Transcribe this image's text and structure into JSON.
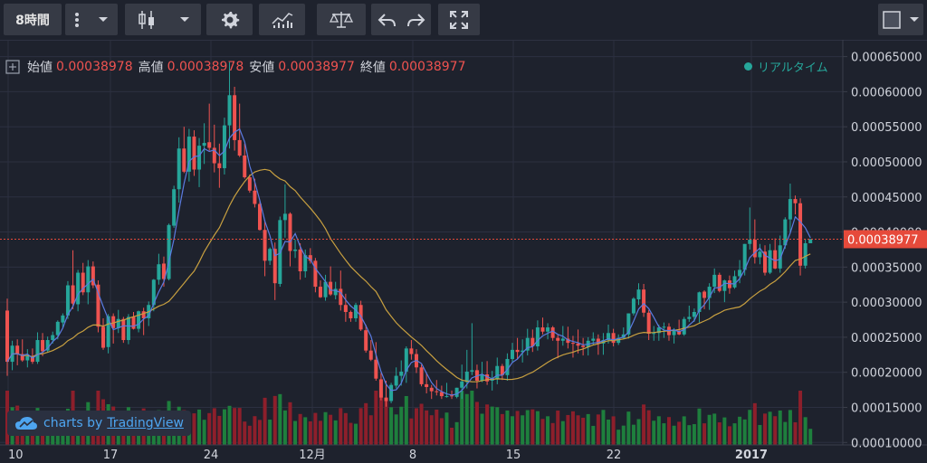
{
  "toolbar": {
    "interval": "8時間",
    "icons": [
      "more-vert-icon",
      "chevron-down-icon",
      "candlestick-icon",
      "chevron-down-icon",
      "gear-icon",
      "indicators-icon",
      "compare-scale-icon",
      "undo-icon",
      "redo-icon",
      "fullscreen-icon",
      "color-square-icon",
      "chevron-down-icon"
    ]
  },
  "legend": {
    "open_label": "始値",
    "open_value": "0.00038978",
    "high_label": "高値",
    "high_value": "0.00038978",
    "low_label": "安値",
    "low_value": "0.00038977",
    "close_label": "終値",
    "close_value": "0.00038977"
  },
  "realtime_label": "リアルタイム",
  "watermark": {
    "prefix": "charts by",
    "brand": "TradingView"
  },
  "colors": {
    "up": "#26a69a",
    "down": "#ef5350",
    "up_vol": "#1e7f3d",
    "down_vol": "#8d1f2b",
    "sma_fast": "#5b7be0",
    "sma_slow": "#c8a040",
    "bg": "#1e222d",
    "grid": "#2c3040",
    "badge": "#e64a3b"
  },
  "chart_data": {
    "type": "candlestick",
    "price_axis": {
      "ticks": [
        "0.00065000",
        "0.00060000",
        "0.00055000",
        "0.00050000",
        "0.00045000",
        "0.00040000",
        "0.00035000",
        "0.00030000",
        "0.00025000",
        "0.00020000",
        "0.00015000",
        "0.00010000"
      ],
      "ylim": [
        9.65e-05,
        0.000674
      ],
      "last_price": "0.00038977"
    },
    "time_axis": {
      "ticks": [
        "10",
        "17",
        "24",
        "12月",
        "8",
        "15",
        "22",
        "2017"
      ]
    },
    "series": [
      {
        "name": "price",
        "values": [
          [
            0.000288,
            0.000305,
            0.000195,
            0.000215
          ],
          [
            0.000215,
            0.000245,
            0.000203,
            0.000238
          ],
          [
            0.000238,
            0.000247,
            0.00021,
            0.000226
          ],
          [
            0.000226,
            0.000247,
            0.000215,
            0.000217
          ],
          [
            0.000217,
            0.000233,
            0.000207,
            0.000223
          ],
          [
            0.000223,
            0.000234,
            0.000212,
            0.000215
          ],
          [
            0.000215,
            0.000257,
            0.000212,
            0.000246
          ],
          [
            0.000246,
            0.000256,
            0.000223,
            0.00023
          ],
          [
            0.000231,
            0.000251,
            0.000228,
            0.000246
          ],
          [
            0.000246,
            0.000258,
            0.000241,
            0.000253
          ],
          [
            0.000253,
            0.000274,
            0.000247,
            0.000272
          ],
          [
            0.000271,
            0.000284,
            0.000264,
            0.000281
          ],
          [
            0.000281,
            0.00033,
            0.000276,
            0.000324
          ],
          [
            0.000324,
            0.000374,
            0.00029,
            0.000298
          ],
          [
            0.000297,
            0.000346,
            0.000287,
            0.000342
          ],
          [
            0.000342,
            0.000356,
            0.00031,
            0.000314
          ],
          [
            0.000314,
            0.00036,
            0.000297,
            0.000351
          ],
          [
            0.000351,
            0.000358,
            0.00032,
            0.000324
          ],
          [
            0.000325,
            0.000331,
            0.000257,
            0.000265
          ],
          [
            0.000265,
            0.000277,
            0.000232,
            0.000235
          ],
          [
            0.000236,
            0.000283,
            0.000227,
            0.00028
          ],
          [
            0.00028,
            0.000284,
            0.000241,
            0.000263
          ],
          [
            0.000263,
            0.000289,
            0.000256,
            0.000276
          ],
          [
            0.000276,
            0.000279,
            0.000242,
            0.000246
          ],
          [
            0.000246,
            0.000283,
            0.00024,
            0.000279
          ],
          [
            0.000279,
            0.000286,
            0.000261,
            0.000262
          ],
          [
            0.000262,
            0.000288,
            0.000257,
            0.000287
          ],
          [
            0.000287,
            0.000292,
            0.000253,
            0.000277
          ],
          [
            0.000277,
            0.000301,
            0.000266,
            0.000296
          ],
          [
            0.000296,
            0.000333,
            0.000287,
            0.000332
          ],
          [
            0.000332,
            0.000369,
            0.000325,
            0.000354
          ],
          [
            0.000355,
            0.000365,
            0.000322,
            0.000333
          ],
          [
            0.000333,
            0.000412,
            0.000331,
            0.00041
          ],
          [
            0.000409,
            0.000466,
            0.000406,
            0.000461
          ],
          [
            0.000461,
            0.000535,
            0.000442,
            0.000519
          ],
          [
            0.000519,
            0.00055,
            0.000484,
            0.000486
          ],
          [
            0.000486,
            0.000547,
            0.000472,
            0.000536
          ],
          [
            0.000536,
            0.000545,
            0.00048,
            0.000489
          ],
          [
            0.000489,
            0.000534,
            0.000464,
            0.000523
          ],
          [
            0.000523,
            0.000555,
            0.000497,
            0.000527
          ],
          [
            0.000528,
            0.000583,
            0.000516,
            0.00052
          ],
          [
            0.00052,
            0.000553,
            0.000485,
            0.000498
          ],
          [
            0.000498,
            0.000526,
            0.000463,
            0.000491
          ],
          [
            0.000491,
            0.000563,
            0.000482,
            0.000552
          ],
          [
            0.000552,
            0.000642,
            0.000519,
            0.000595
          ],
          [
            0.000595,
            0.000607,
            0.000516,
            0.000531
          ],
          [
            0.000531,
            0.000583,
            0.000507,
            0.000509
          ],
          [
            0.000509,
            0.000526,
            0.000476,
            0.000478
          ],
          [
            0.000478,
            0.000482,
            0.000456,
            0.000459
          ],
          [
            0.000459,
            0.000476,
            0.000435,
            0.00044
          ],
          [
            0.00044,
            0.000446,
            0.000402,
            0.000403
          ],
          [
            0.000403,
            0.000417,
            0.000337,
            0.000359
          ],
          [
            0.000359,
            0.000378,
            0.000353,
            0.000376
          ],
          [
            0.000376,
            0.000385,
            0.000303,
            0.000327
          ],
          [
            0.000326,
            0.000422,
            0.000322,
            0.000417
          ],
          [
            0.000417,
            0.000468,
            0.000392,
            0.000426
          ],
          [
            0.000426,
            0.000428,
            0.000351,
            0.000373
          ],
          [
            0.000373,
            0.000389,
            0.000363,
            0.000375
          ],
          [
            0.000375,
            0.000384,
            0.000332,
            0.000344
          ],
          [
            0.000344,
            0.000375,
            0.000335,
            0.000367
          ],
          [
            0.000367,
            0.000377,
            0.000355,
            0.000359
          ],
          [
            0.000359,
            0.000363,
            0.000314,
            0.000322
          ],
          [
            0.000322,
            0.000331,
            0.000306,
            0.000307
          ],
          [
            0.000307,
            0.000339,
            0.000302,
            0.000329
          ],
          [
            0.000329,
            0.000351,
            0.000309,
            0.000311
          ],
          [
            0.00031,
            0.000329,
            0.000304,
            0.000319
          ],
          [
            0.000319,
            0.000345,
            0.000288,
            0.000296
          ],
          [
            0.000296,
            0.000312,
            0.000272,
            0.000286
          ],
          [
            0.000286,
            0.000288,
            0.000272,
            0.000277
          ],
          [
            0.000277,
            0.000299,
            0.000272,
            0.000296
          ],
          [
            0.000296,
            0.000302,
            0.000259,
            0.000261
          ],
          [
            0.00026,
            0.000268,
            0.000228,
            0.000231
          ],
          [
            0.000231,
            0.000246,
            0.000216,
            0.000218
          ],
          [
            0.000218,
            0.000243,
            0.000188,
            0.000191
          ],
          [
            0.00019,
            0.000199,
            0.00016,
            0.000164
          ],
          [
            0.000164,
            0.000188,
            0.000151,
            0.000159
          ],
          [
            0.000159,
            0.000185,
            0.000156,
            0.000182
          ],
          [
            0.000181,
            0.000207,
            0.000177,
            0.000195
          ],
          [
            0.000195,
            0.000217,
            0.000181,
            0.000201
          ],
          [
            0.000201,
            0.000237,
            0.000185,
            0.000234
          ],
          [
            0.000234,
            0.000246,
            0.000218,
            0.000226
          ],
          [
            0.000226,
            0.000233,
            0.000199,
            0.000207
          ],
          [
            0.000207,
            0.000211,
            0.00018,
            0.000183
          ],
          [
            0.000183,
            0.0002,
            0.00017,
            0.000179
          ],
          [
            0.000178,
            0.000182,
            0.000162,
            0.000173
          ],
          [
            0.000173,
            0.000189,
            0.000167,
            0.000172
          ],
          [
            0.000172,
            0.000181,
            0.000162,
            0.000166
          ],
          [
            0.000166,
            0.000185,
            0.000164,
            0.000166
          ],
          [
            0.000167,
            0.000174,
            0.000162,
            0.000166
          ],
          [
            0.000165,
            0.000178,
            0.000163,
            0.000178
          ],
          [
            0.000178,
            0.000211,
            0.000162,
            0.000187
          ],
          [
            0.000186,
            0.000232,
            0.000177,
            0.000201
          ],
          [
            0.000201,
            0.00027,
            0.000196,
            0.000203
          ],
          [
            0.000203,
            0.000211,
            0.000177,
            0.000188
          ],
          [
            0.000188,
            0.000215,
            0.000186,
            0.000197
          ],
          [
            0.000197,
            0.000216,
            0.000182,
            0.000187
          ],
          [
            0.000188,
            0.000202,
            0.000174,
            0.000191
          ],
          [
            0.000191,
            0.000221,
            0.000183,
            0.000209
          ],
          [
            0.000209,
            0.000212,
            0.000189,
            0.000196
          ],
          [
            0.000196,
            0.000227,
            0.000188,
            0.000219
          ],
          [
            0.000219,
            0.000242,
            0.000214,
            0.000232
          ],
          [
            0.000232,
            0.000249,
            0.000219,
            0.000229
          ],
          [
            0.000229,
            0.000247,
            0.000214,
            0.000231
          ],
          [
            0.000231,
            0.000262,
            0.000224,
            0.000249
          ],
          [
            0.000249,
            0.000261,
            0.000229,
            0.000237
          ],
          [
            0.000237,
            0.000274,
            0.000231,
            0.000264
          ],
          [
            0.000264,
            0.000278,
            0.000254,
            0.000258
          ],
          [
            0.000258,
            0.00027,
            0.000247,
            0.000264
          ],
          [
            0.000264,
            0.000266,
            0.000245,
            0.000249
          ],
          [
            0.000249,
            0.000254,
            0.00022,
            0.000245
          ],
          [
            0.000245,
            0.000266,
            0.000238,
            0.000248
          ],
          [
            0.000248,
            0.000265,
            0.000234,
            0.000242
          ],
          [
            0.000242,
            0.000252,
            0.000221,
            0.000241
          ],
          [
            0.000241,
            0.000261,
            0.000227,
            0.000238
          ],
          [
            0.000238,
            0.000249,
            0.000224,
            0.000236
          ],
          [
            0.000236,
            0.00025,
            0.000224,
            0.000245
          ],
          [
            0.000245,
            0.000257,
            0.000239,
            0.000248
          ],
          [
            0.000248,
            0.000254,
            0.000225,
            0.000241
          ],
          [
            0.000241,
            0.000256,
            0.000225,
            0.000246
          ],
          [
            0.000246,
            0.000268,
            0.000241,
            0.000256
          ],
          [
            0.000256,
            0.000262,
            0.000237,
            0.000242
          ],
          [
            0.000242,
            0.000254,
            0.000239,
            0.000249
          ],
          [
            0.000249,
            0.000264,
            0.000248,
            0.000254
          ],
          [
            0.000254,
            0.000284,
            0.000248,
            0.000284
          ],
          [
            0.000284,
            0.000307,
            0.000281,
            0.000305
          ],
          [
            0.000304,
            0.000327,
            0.000296,
            0.000318
          ],
          [
            0.000318,
            0.000326,
            0.000279,
            0.000285
          ],
          [
            0.000285,
            0.000289,
            0.000246,
            0.000255
          ],
          [
            0.000255,
            0.000266,
            0.000245,
            0.000256
          ],
          [
            0.000256,
            0.000268,
            0.000245,
            0.000264
          ],
          [
            0.000264,
            0.000271,
            0.000249,
            0.000265
          ],
          [
            0.000265,
            0.00027,
            0.000245,
            0.000253
          ],
          [
            0.000253,
            0.000263,
            0.000241,
            0.00026
          ],
          [
            0.000259,
            0.000275,
            0.000253,
            0.000254
          ],
          [
            0.000254,
            0.000279,
            0.000252,
            0.000276
          ],
          [
            0.000276,
            0.000295,
            0.000272,
            0.000279
          ],
          [
            0.000279,
            0.000291,
            0.000272,
            0.000286
          ],
          [
            0.000286,
            0.000315,
            0.000271,
            0.000314
          ],
          [
            0.000315,
            0.000317,
            0.00029,
            0.000306
          ],
          [
            0.000306,
            0.000327,
            0.000289,
            0.000322
          ],
          [
            0.000322,
            0.000348,
            0.000313,
            0.000339
          ],
          [
            0.000339,
            0.000342,
            0.000314,
            0.000316
          ],
          [
            0.000316,
            0.000332,
            0.0003,
            0.000331
          ],
          [
            0.000331,
            0.000338,
            0.000312,
            0.00032
          ],
          [
            0.000321,
            0.000345,
            0.000319,
            0.000337
          ],
          [
            0.000337,
            0.00036,
            0.000327,
            0.000346
          ],
          [
            0.000346,
            0.000383,
            0.000338,
            0.000383
          ],
          [
            0.000383,
            0.000435,
            0.000375,
            0.000389
          ],
          [
            0.000389,
            0.000418,
            0.000355,
            0.000364
          ],
          [
            0.000364,
            0.000383,
            0.000354,
            0.000372
          ],
          [
            0.000372,
            0.000381,
            0.000338,
            0.000342
          ],
          [
            0.000342,
            0.000383,
            0.00034,
            0.000374
          ],
          [
            0.000374,
            0.000391,
            0.000347,
            0.000348
          ],
          [
            0.000348,
            0.000395,
            0.000342,
            0.000381
          ],
          [
            0.000381,
            0.000421,
            0.000376,
            0.000418
          ],
          [
            0.000418,
            0.000469,
            0.000398,
            0.000447
          ],
          [
            0.000447,
            0.000452,
            0.000425,
            0.000441
          ],
          [
            0.000441,
            0.000448,
            0.000338,
            0.000352
          ],
          [
            0.000352,
            0.00039,
            0.000348,
            0.000384
          ],
          [
            0.000384,
            0.00039,
            0.000384,
            0.00039
          ]
        ]
      }
    ]
  }
}
